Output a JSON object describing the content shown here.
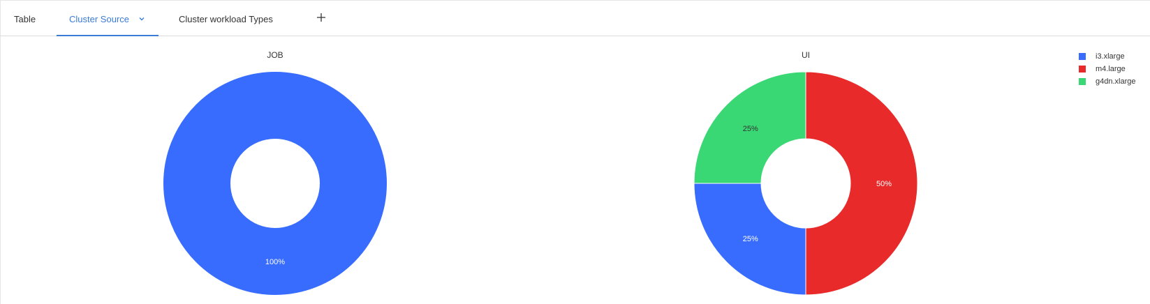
{
  "tabs": [
    {
      "label": "Table",
      "active": false
    },
    {
      "label": "Cluster Source",
      "active": true
    },
    {
      "label": "Cluster workload Types",
      "active": false
    }
  ],
  "add_tab_icon": "plus-icon",
  "active_tab_icon": "chevron-down-icon",
  "colors": {
    "accent": "#3a7bd5",
    "i3.xlarge": "#376cff",
    "m4.large": "#e82a2a",
    "g4dn.xlarge": "#3ad874"
  },
  "legend": [
    "i3.xlarge",
    "m4.large",
    "g4dn.xlarge"
  ],
  "chart_data": [
    {
      "type": "pie",
      "title": "JOB",
      "donut": true,
      "slices": [
        {
          "label": "i3.xlarge",
          "value": 100,
          "display": "100%"
        }
      ]
    },
    {
      "type": "pie",
      "title": "UI",
      "donut": true,
      "slices": [
        {
          "label": "m4.large",
          "value": 50,
          "display": "50%"
        },
        {
          "label": "i3.xlarge",
          "value": 25,
          "display": "25%"
        },
        {
          "label": "g4dn.xlarge",
          "value": 25,
          "display": "25%"
        }
      ]
    }
  ]
}
